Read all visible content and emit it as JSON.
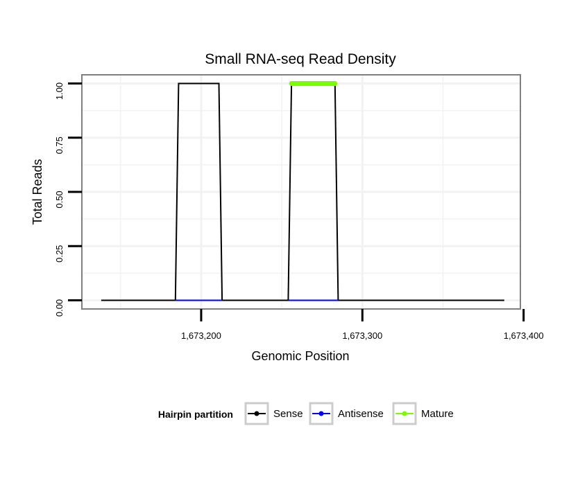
{
  "chart_data": {
    "type": "line",
    "title": "Small RNA-seq Read Density",
    "xlabel": "Genomic Position",
    "ylabel": "Total Reads",
    "xlim": [
      1673126,
      1673398
    ],
    "ylim": [
      -0.04,
      1.04
    ],
    "x_ticks": [
      1673200,
      1673300,
      1673400
    ],
    "x_tick_labels": [
      "1,673,200",
      "1,673,300",
      "1,673,400"
    ],
    "y_ticks": [
      0.0,
      0.25,
      0.5,
      0.75,
      1.0
    ],
    "y_tick_labels": [
      "0.00",
      "0.25",
      "0.50",
      "0.75",
      "1.00"
    ],
    "grid": true,
    "legend": {
      "title": "Hairpin partition",
      "placement": "bottom",
      "entries": [
        "Sense",
        "Antisense",
        "Mature"
      ]
    },
    "series": [
      {
        "name": "Sense",
        "color": "#000000",
        "x": [
          1673138,
          1673184,
          1673186,
          1673211,
          1673213,
          1673254,
          1673256,
          1673283,
          1673285,
          1673388
        ],
        "y": [
          0,
          0,
          1,
          1,
          0,
          0,
          1,
          1,
          0,
          0
        ]
      },
      {
        "name": "Antisense",
        "color": "#0000ff",
        "x": [
          1673184,
          1673213
        ],
        "y": [
          0,
          0
        ]
      },
      {
        "name": "Antisense",
        "color": "#0000ff",
        "x": [
          1673254,
          1673285
        ],
        "y": [
          0,
          0
        ]
      },
      {
        "name": "Mature",
        "color": "#7cfc00",
        "x": [
          1673256,
          1673283
        ],
        "y": [
          1,
          1
        ]
      }
    ]
  }
}
